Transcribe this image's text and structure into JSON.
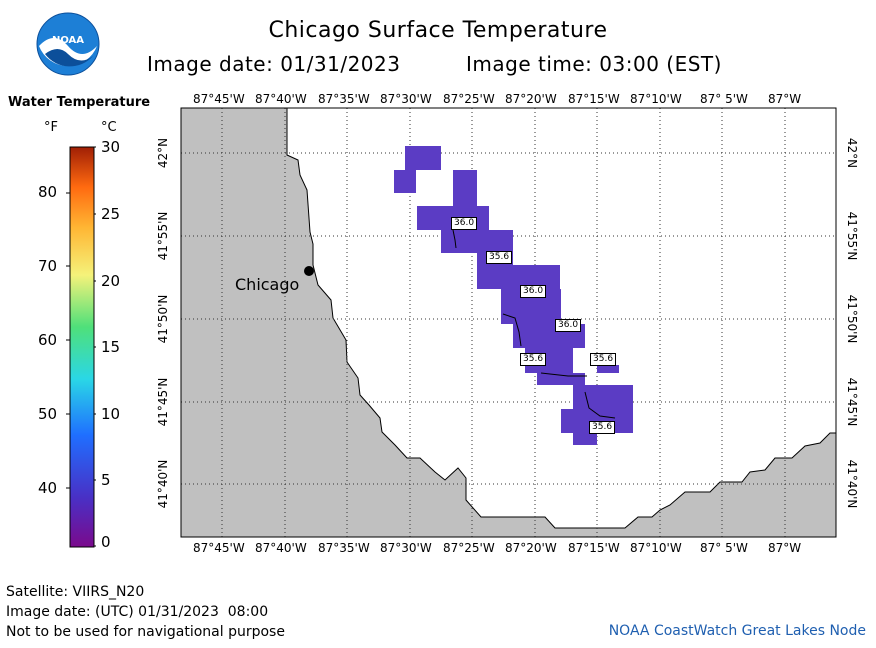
{
  "title": "Chicago Surface Temperature",
  "image_date_label": "Image date: 01/31/2023",
  "image_time_label": "Image time: 03:00 (EST)",
  "logo_text": "NOAA",
  "legend": {
    "title": "Water Temperature",
    "unit_f": "°F",
    "unit_c": "°C",
    "f_ticks": [
      "80",
      "70",
      "60",
      "50",
      "40"
    ],
    "c_ticks": [
      "30",
      "25",
      "20",
      "15",
      "10",
      "5",
      "0"
    ]
  },
  "map": {
    "lon_labels": [
      "87°45'W",
      "87°40'W",
      "87°35'W",
      "87°30'W",
      "87°25'W",
      "87°20'W",
      "87°15'W",
      "87°10'W",
      "87° 5'W",
      "87°W"
    ],
    "lat_labels": [
      "42°N",
      "41°55'N",
      "41°50'N",
      "41°45'N",
      "41°40'N"
    ],
    "city_label": "Chicago",
    "temperature_labels": [
      "36.0",
      "35.6",
      "36.0",
      "36.0",
      "35.6",
      "35.6",
      "35.6"
    ],
    "colors": {
      "land": "#c0c0c0",
      "water_temp": "#5b3cc4",
      "grid": "#333333"
    }
  },
  "footer": {
    "satellite": "Satellite: VIIRS_N20",
    "utc_date": "Image date: (UTC) 01/31/2023  08:00",
    "disclaimer": "Not to be used for navigational purpose",
    "credit": "NOAA CoastWatch Great Lakes Node"
  }
}
